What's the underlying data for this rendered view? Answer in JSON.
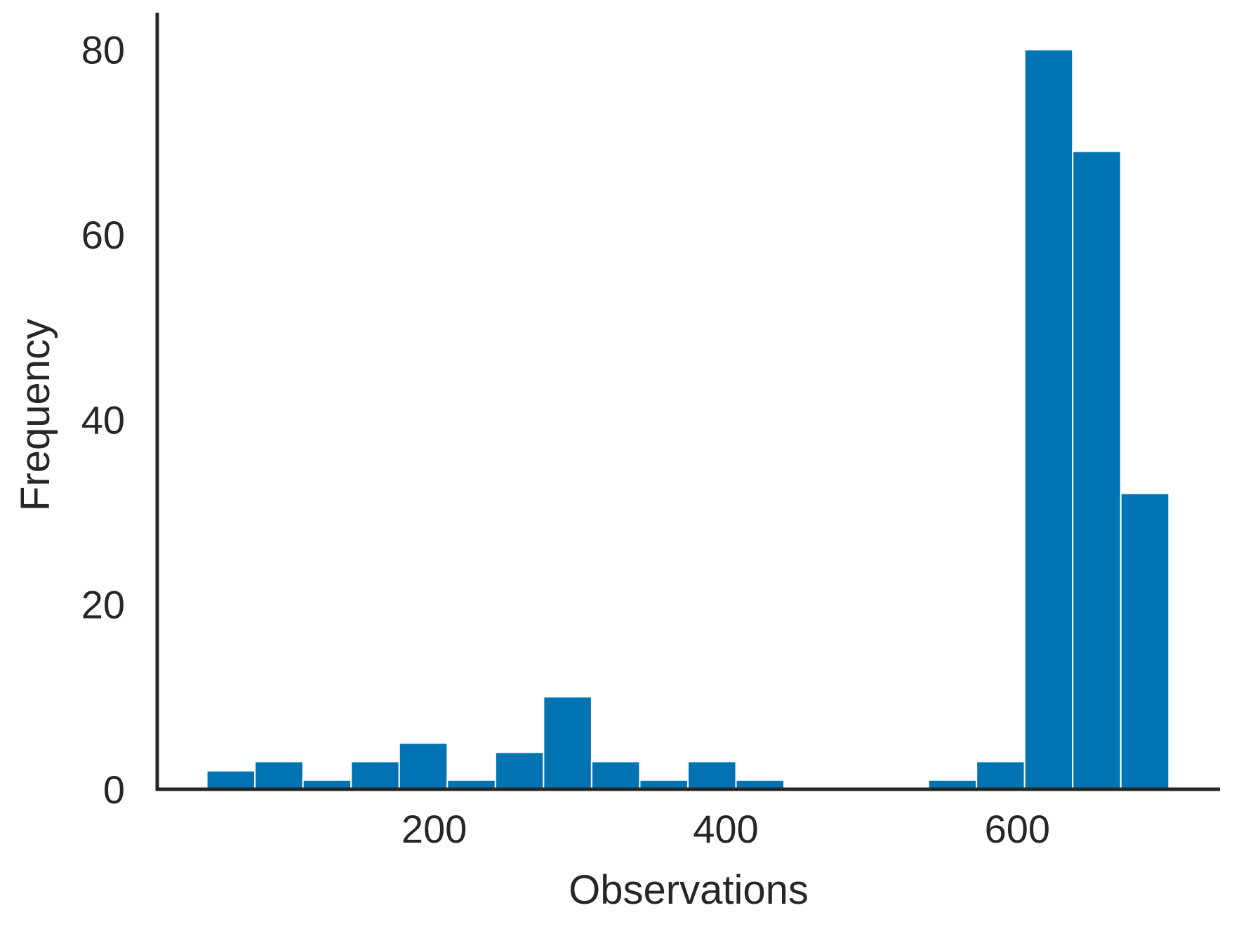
{
  "chart_data": {
    "type": "bar",
    "subtype": "histogram",
    "title": "",
    "xlabel": "Observations",
    "ylabel": "Frequency",
    "xlim": [
      10,
      739
    ],
    "ylim": [
      0,
      84
    ],
    "xticks": [
      200,
      400,
      600
    ],
    "yticks": [
      0,
      20,
      40,
      60,
      80
    ],
    "bin_width": 33,
    "bins": [
      {
        "start": 44,
        "end": 77,
        "count": 2
      },
      {
        "start": 77,
        "end": 110,
        "count": 3
      },
      {
        "start": 110,
        "end": 143,
        "count": 1
      },
      {
        "start": 143,
        "end": 176,
        "count": 3
      },
      {
        "start": 176,
        "end": 209,
        "count": 5
      },
      {
        "start": 209,
        "end": 242,
        "count": 1
      },
      {
        "start": 242,
        "end": 275,
        "count": 4
      },
      {
        "start": 275,
        "end": 308,
        "count": 10
      },
      {
        "start": 308,
        "end": 341,
        "count": 3
      },
      {
        "start": 341,
        "end": 374,
        "count": 1
      },
      {
        "start": 374,
        "end": 407,
        "count": 3
      },
      {
        "start": 407,
        "end": 440,
        "count": 1
      },
      {
        "start": 440,
        "end": 473,
        "count": 0
      },
      {
        "start": 473,
        "end": 506,
        "count": 0
      },
      {
        "start": 506,
        "end": 539,
        "count": 0
      },
      {
        "start": 539,
        "end": 572,
        "count": 1
      },
      {
        "start": 572,
        "end": 605,
        "count": 3
      },
      {
        "start": 605,
        "end": 638,
        "count": 80
      },
      {
        "start": 638,
        "end": 671,
        "count": 69
      },
      {
        "start": 671,
        "end": 704,
        "count": 32
      }
    ],
    "grid": false,
    "legend": "none",
    "colors": {
      "bar": "#0173b2",
      "bar_edge": "#ffffff",
      "axis": "#262626",
      "text": "#262626"
    }
  }
}
